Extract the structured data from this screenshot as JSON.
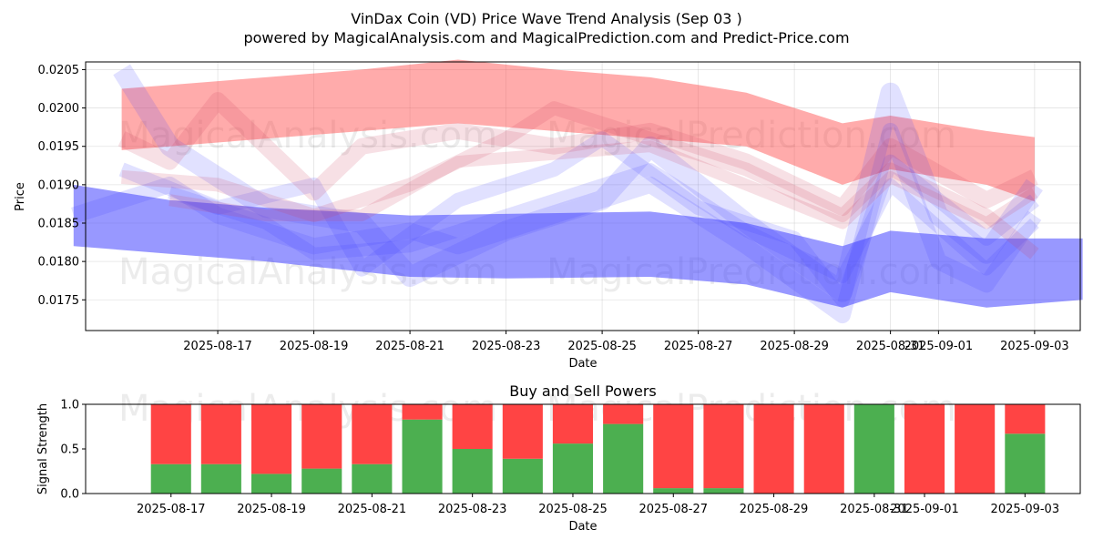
{
  "title_line1": "VinDax Coin (VD) Price Wave Trend Analysis (Sep 03 )",
  "title_line2": "powered by MagicalAnalysis.com and MagicalPrediction.com and Predict-Price.com",
  "watermarks": [
    "MagicalAnalysis.com",
    "MagicalPrediction.com"
  ],
  "colors": {
    "red": "#ff4444",
    "green": "#4caf50",
    "blue": "#4444ff",
    "pink": "#ff8888"
  },
  "chart_data": [
    {
      "type": "area",
      "xlabel": "Date",
      "ylabel": "Price",
      "grid": true,
      "x_tick_labels": [
        "2025-08-17",
        "2025-08-19",
        "2025-08-21",
        "2025-08-23",
        "2025-08-25",
        "2025-08-27",
        "2025-08-29",
        "2025-08-31",
        "2025-09-01",
        "2025-09-03"
      ],
      "x_tick_dates": [
        "2025-08-17",
        "2025-08-19",
        "2025-08-21",
        "2025-08-23",
        "2025-08-25",
        "2025-08-27",
        "2025-08-29",
        "2025-08-31",
        "2025-09-01",
        "2025-09-03"
      ],
      "y_ticks": [
        0.0175,
        0.018,
        0.0185,
        0.019,
        0.0195,
        0.02,
        0.0205
      ],
      "y_tick_labels": [
        "0.0175",
        "0.0180",
        "0.0185",
        "0.0190",
        "0.0195",
        "0.0200",
        "0.0205"
      ],
      "ylim": [
        0.0171,
        0.0206
      ],
      "xlim": [
        "2025-08-14",
        "2025-09-04"
      ],
      "red_upper_band": {
        "x": [
          "2025-08-15",
          "2025-08-18",
          "2025-08-20",
          "2025-08-22",
          "2025-08-24",
          "2025-08-26",
          "2025-08-28",
          "2025-08-30",
          "2025-08-31",
          "2025-09-02",
          "2025-09-03"
        ],
        "upper": [
          0.02025,
          0.0204,
          0.0205,
          0.02063,
          0.0205,
          0.0204,
          0.0202,
          0.0198,
          0.0199,
          0.0197,
          0.01962
        ],
        "lower": [
          0.01945,
          0.0196,
          0.0197,
          0.0198,
          0.0197,
          0.0196,
          0.0195,
          0.019,
          0.0192,
          0.019,
          0.01878
        ]
      },
      "blue_lower_band": {
        "x": [
          "2025-08-14",
          "2025-08-16",
          "2025-08-18",
          "2025-08-21",
          "2025-08-23",
          "2025-08-26",
          "2025-08-28",
          "2025-08-30",
          "2025-08-31",
          "2025-09-02",
          "2025-09-04"
        ],
        "upper": [
          0.019,
          0.0188,
          0.0187,
          0.0186,
          0.01862,
          0.01865,
          0.0185,
          0.0182,
          0.0184,
          0.0183,
          0.0183
        ],
        "lower": [
          0.0182,
          0.0181,
          0.018,
          0.0178,
          0.01778,
          0.0178,
          0.0177,
          0.0174,
          0.0176,
          0.0174,
          0.0175
        ]
      },
      "blue_waves": [
        {
          "x": [
            "2025-08-15",
            "2025-08-16",
            "2025-08-18",
            "2025-08-20",
            "2025-08-21",
            "2025-08-23",
            "2025-08-25",
            "2025-08-26",
            "2025-08-28",
            "2025-08-30",
            "2025-08-31",
            "2025-09-01",
            "2025-09-02",
            "2025-09-03"
          ],
          "y": [
            0.0205,
            0.0195,
            0.0187,
            0.0185,
            0.0178,
            0.0184,
            0.0188,
            0.0195,
            0.0185,
            0.0176,
            0.0202,
            0.0186,
            0.0181,
            0.019
          ]
        },
        {
          "x": [
            "2025-08-14",
            "2025-08-16",
            "2025-08-17",
            "2025-08-19",
            "2025-08-21",
            "2025-08-22",
            "2025-08-24",
            "2025-08-26",
            "2025-08-28",
            "2025-08-30",
            "2025-08-31",
            "2025-09-01",
            "2025-09-02",
            "2025-09-03"
          ],
          "y": [
            0.0186,
            0.019,
            0.0186,
            0.0182,
            0.0184,
            0.0182,
            0.0186,
            0.019,
            0.0182,
            0.0173,
            0.0197,
            0.018,
            0.0177,
            0.0186
          ]
        },
        {
          "x": [
            "2025-08-15",
            "2025-08-17",
            "2025-08-19",
            "2025-08-20",
            "2025-08-22",
            "2025-08-24",
            "2025-08-25",
            "2025-08-27",
            "2025-08-29",
            "2025-08-30",
            "2025-08-31",
            "2025-09-02",
            "2025-09-03"
          ],
          "y": [
            0.0192,
            0.0187,
            0.019,
            0.0179,
            0.0188,
            0.0192,
            0.0196,
            0.0187,
            0.0183,
            0.0175,
            0.0193,
            0.0183,
            0.0188
          ]
        },
        {
          "x": [
            "2025-08-16",
            "2025-08-18",
            "2025-08-19",
            "2025-08-21",
            "2025-08-23",
            "2025-08-25",
            "2025-08-26",
            "2025-08-28",
            "2025-08-30",
            "2025-08-31",
            "2025-09-02",
            "2025-09-03"
          ],
          "y": [
            0.0189,
            0.0185,
            0.0181,
            0.0182,
            0.0186,
            0.019,
            0.0192,
            0.0184,
            0.0178,
            0.019,
            0.0179,
            0.0185
          ]
        }
      ],
      "red_waves": [
        {
          "x": [
            "2025-08-15",
            "2025-08-16",
            "2025-08-17",
            "2025-08-19",
            "2025-08-20",
            "2025-08-22",
            "2025-08-24",
            "2025-08-26",
            "2025-08-28",
            "2025-08-30",
            "2025-08-31",
            "2025-09-02",
            "2025-09-03"
          ],
          "y": [
            0.0196,
            0.0193,
            0.0201,
            0.0189,
            0.0195,
            0.0197,
            0.0195,
            0.0197,
            0.0193,
            0.0187,
            0.0195,
            0.0188,
            0.0191
          ]
        },
        {
          "x": [
            "2025-08-15",
            "2025-08-17",
            "2025-08-19",
            "2025-08-21",
            "2025-08-23",
            "2025-08-24",
            "2025-08-26",
            "2025-08-28",
            "2025-08-30",
            "2025-08-31",
            "2025-09-02",
            "2025-09-03"
          ],
          "y": [
            0.0191,
            0.019,
            0.0186,
            0.019,
            0.0196,
            0.02,
            0.0196,
            0.0192,
            0.0186,
            0.0192,
            0.0186,
            0.0181
          ]
        },
        {
          "x": [
            "2025-08-16",
            "2025-08-18",
            "2025-08-20",
            "2025-08-22",
            "2025-08-24",
            "2025-08-26",
            "2025-08-28",
            "2025-08-30",
            "2025-08-31",
            "2025-09-02",
            "2025-09-03"
          ],
          "y": [
            0.0188,
            0.0186,
            0.0186,
            0.0193,
            0.0194,
            0.0195,
            0.019,
            0.0185,
            0.0191,
            0.0185,
            0.0189
          ]
        }
      ]
    },
    {
      "type": "bar",
      "title": "Buy and Sell Powers",
      "xlabel": "Date",
      "ylabel": "Signal Strength",
      "ylim": [
        0,
        1
      ],
      "y_ticks": [
        0,
        0.5,
        1
      ],
      "y_tick_labels": [
        "0.0",
        "0.5",
        "1.0"
      ],
      "x_tick_labels": [
        "2025-08-17",
        "2025-08-19",
        "2025-08-21",
        "2025-08-23",
        "2025-08-25",
        "2025-08-27",
        "2025-08-29",
        "2025-08-31",
        "2025-09-01",
        "2025-09-03"
      ],
      "x_tick_dates": [
        "2025-08-17",
        "2025-08-19",
        "2025-08-21",
        "2025-08-23",
        "2025-08-25",
        "2025-08-27",
        "2025-08-29",
        "2025-08-31",
        "2025-09-01",
        "2025-09-03"
      ],
      "xlim": [
        "2025-08-15.3",
        "2025-09-04.1"
      ],
      "dates": [
        "2025-08-17",
        "2025-08-18",
        "2025-08-19",
        "2025-08-20",
        "2025-08-21",
        "2025-08-22",
        "2025-08-23",
        "2025-08-24",
        "2025-08-25",
        "2025-08-26",
        "2025-08-27",
        "2025-08-28",
        "2025-08-29",
        "2025-08-30",
        "2025-08-31",
        "2025-09-01",
        "2025-09-02",
        "2025-09-03"
      ],
      "series": [
        {
          "name": "",
          "color": "#4caf50",
          "values": [
            0.33,
            0.33,
            0.22,
            0.28,
            0.33,
            0.83,
            0.5,
            0.39,
            0.56,
            0.78,
            0.06,
            0.06,
            0,
            0,
            1,
            0,
            0,
            0.67
          ]
        },
        {
          "name": "",
          "color": "#ff4444",
          "values": [
            0.67,
            0.67,
            0.78,
            0.72,
            0.67,
            0.17,
            0.5,
            0.61,
            0.44,
            0.22,
            0.94,
            0.94,
            1,
            1,
            0,
            1,
            1,
            0.33
          ]
        }
      ]
    }
  ]
}
